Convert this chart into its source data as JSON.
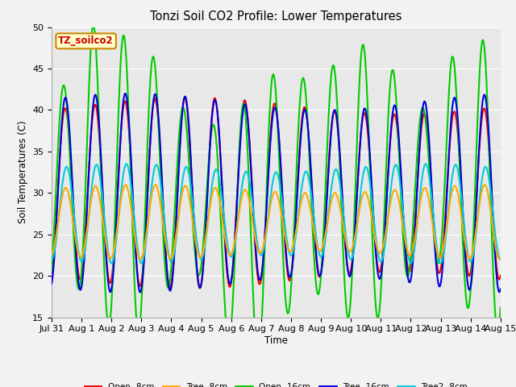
{
  "title": "Tonzi Soil CO2 Profile: Lower Temperatures",
  "xlabel": "Time",
  "ylabel": "Soil Temperatures (C)",
  "ylim": [
    15,
    50
  ],
  "background_color": "#f2f2f2",
  "plot_bg": "#e8e8e8",
  "watermark_text": "TZ_soilco2",
  "watermark_bg": "#ffffcc",
  "watermark_fg": "#cc0000",
  "xtick_labels": [
    "Jul 31",
    "Aug 1",
    "Aug 2",
    "Aug 3",
    "Aug 4",
    "Aug 5",
    "Aug 6",
    "Aug 7",
    "Aug 8",
    "Aug 9",
    "Aug 10",
    "Aug 11",
    "Aug 12",
    "Aug 13",
    "Aug 14",
    "Aug 15"
  ],
  "lines": {
    "open_8cm": {
      "color": "#ee0000",
      "label": "Open -8cm",
      "lw": 1.5
    },
    "tree_8cm": {
      "color": "#ffaa00",
      "label": "Tree -8cm",
      "lw": 1.5
    },
    "open_16cm": {
      "color": "#00cc00",
      "label": "Open -16cm",
      "lw": 1.5
    },
    "tree_16cm": {
      "color": "#0000dd",
      "label": "Tree -16cm",
      "lw": 1.5
    },
    "tree2_8cm": {
      "color": "#00ccdd",
      "label": "Tree2 -8cm",
      "lw": 1.5
    }
  }
}
